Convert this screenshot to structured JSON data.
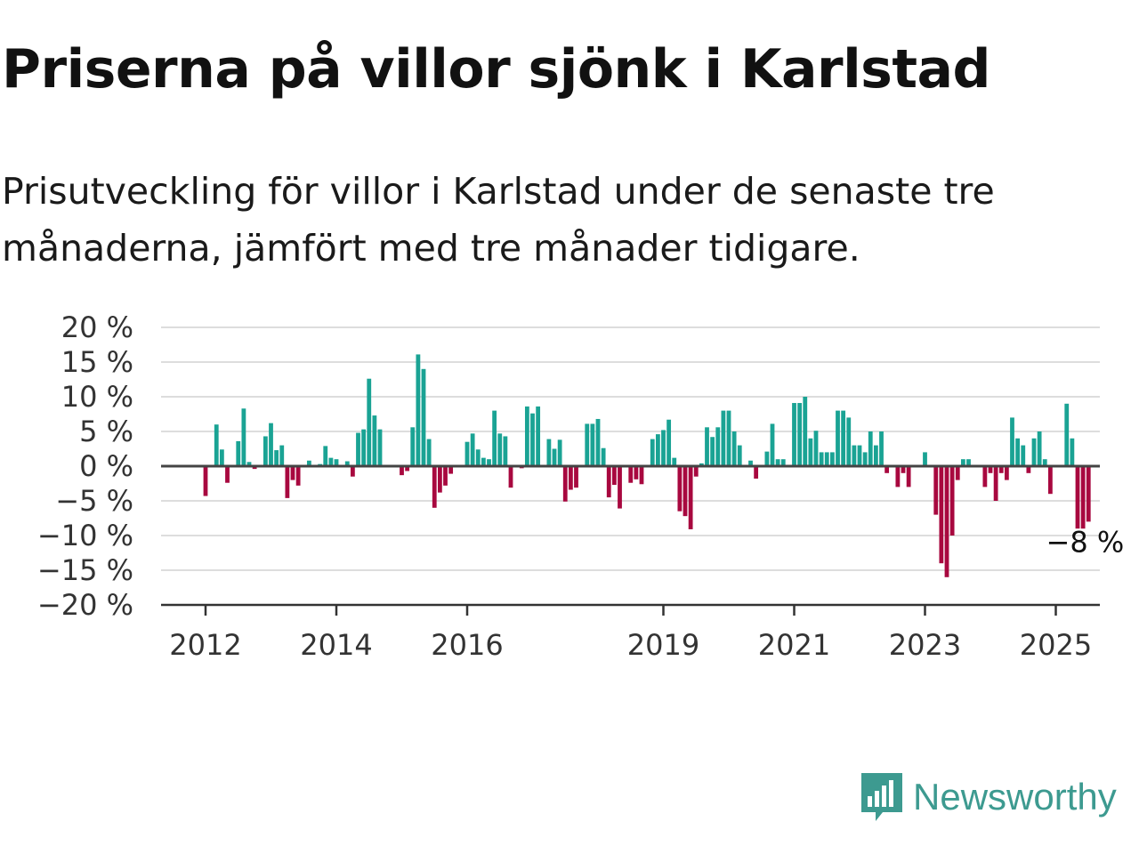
{
  "title": "Priserna på villor sjönk i Karlstad",
  "subtitle": "Prisutveckling för villor i Karlstad under de senaste tre månaderna, jämfört med tre månader tidigare.",
  "brand": {
    "name": "Newsworthy",
    "color": "#3d9a90",
    "icon": "newsworthy-logo-icon"
  },
  "chart_data": {
    "type": "bar",
    "x_start": "2011-05",
    "x_step": "1 month",
    "unit": "%",
    "ylim": [
      -20,
      20
    ],
    "yticks": [
      20,
      15,
      10,
      5,
      0,
      -5,
      -10,
      -15,
      -20
    ],
    "ytick_labels": [
      "20 %",
      "15 %",
      "10 %",
      "5 %",
      "0 %",
      "−5 %",
      "−10 %",
      "−15 %",
      "−20 %"
    ],
    "xticks": [
      {
        "label": "2012",
        "date": "2012-01"
      },
      {
        "label": "2014",
        "date": "2014-01"
      },
      {
        "label": "2016",
        "date": "2016-01"
      },
      {
        "label": "2019",
        "date": "2019-01"
      },
      {
        "label": "2021",
        "date": "2021-01"
      },
      {
        "label": "2023",
        "date": "2023-01"
      },
      {
        "label": "2025",
        "date": "2025-01"
      }
    ],
    "grid": true,
    "colors": {
      "positive": "#1aa394",
      "negative": "#a8083f",
      "grid": "#dddddd",
      "zero_line": "#444444"
    },
    "end_label": "−8 %",
    "values": [
      0,
      0,
      0,
      0,
      0,
      0,
      0,
      0,
      -4.3,
      0,
      6.0,
      2.4,
      -2.4,
      0,
      3.6,
      8.3,
      0.6,
      -0.4,
      0,
      4.3,
      6.2,
      2.3,
      3.0,
      -4.6,
      -2.0,
      -2.8,
      0,
      0.8,
      0,
      0.3,
      2.9,
      1.2,
      1.0,
      0,
      0.7,
      -1.5,
      4.8,
      5.3,
      12.6,
      7.3,
      5.3,
      0,
      0,
      0,
      -1.3,
      -0.7,
      5.6,
      16.1,
      14.0,
      3.9,
      -6.0,
      -3.8,
      -2.8,
      -1.1,
      0,
      0,
      3.5,
      4.7,
      2.4,
      1.2,
      1.0,
      8.0,
      4.7,
      4.3,
      -3.1,
      0,
      -0.3,
      8.6,
      7.6,
      8.6,
      0,
      3.9,
      2.5,
      3.8,
      -5.1,
      -3.4,
      -3.1,
      0,
      6.1,
      6.1,
      6.8,
      2.6,
      -4.5,
      -2.7,
      -6.1,
      0,
      -2.4,
      -1.9,
      -2.6,
      0,
      3.9,
      4.6,
      5.2,
      6.7,
      1.2,
      -6.5,
      -7.2,
      -9.1,
      -1.5,
      0.4,
      5.6,
      4.2,
      5.6,
      8.0,
      8.0,
      5.0,
      3.0,
      0,
      0.8,
      -1.8,
      0,
      2.1,
      6.1,
      1.0,
      1.0,
      0,
      9.1,
      9.1,
      10.0,
      4.0,
      5.1,
      2.0,
      2.0,
      2.0,
      8.0,
      8.0,
      7.0,
      3.0,
      3.0,
      2.0,
      5.0,
      3.0,
      5.0,
      -1.0,
      0,
      -3.0,
      -1.0,
      -3.0,
      0,
      0,
      2.0,
      0,
      -7.0,
      -14.0,
      -16.0,
      -10.0,
      -2.0,
      1.0,
      1.0,
      0,
      0,
      -3.0,
      -1.0,
      -5.0,
      -1.0,
      -2.0,
      7.0,
      4.0,
      3.0,
      -1.0,
      4.0,
      5.0,
      1.0,
      -4.0,
      0,
      0,
      9.0,
      4.0,
      -9.0,
      -9.0,
      -8.0
    ]
  }
}
